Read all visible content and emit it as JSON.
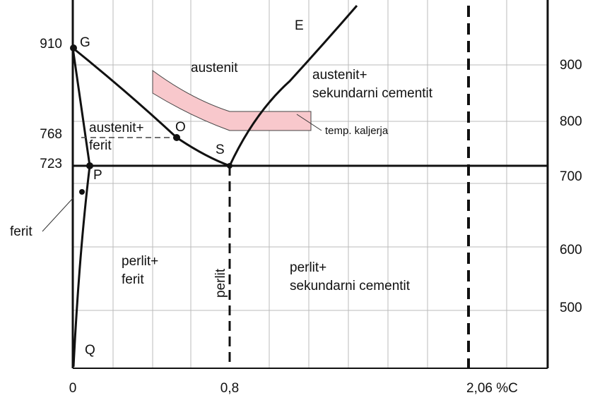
{
  "left_axis": [
    "910",
    "768",
    "723"
  ],
  "right_axis": [
    "900",
    "800",
    "700",
    "600",
    "500"
  ],
  "bottom_axis": [
    "0",
    "0,8",
    "2,06 %C"
  ],
  "points": [
    "G",
    "O",
    "S",
    "E",
    "P",
    "Q"
  ],
  "regions": {
    "austenit": "austenit",
    "austenit_cementit": [
      "austenit+",
      "sekundarni cementit"
    ],
    "austenit_ferit": [
      "austenit+",
      "ferit"
    ],
    "temp": "temp. kaljerja",
    "ferit": "ferit",
    "perlit_ferit": [
      "perlit+",
      "ferit"
    ],
    "perlit": "perlit",
    "perlit_cementit": [
      "perlit+",
      "sekundarni cementit"
    ]
  }
}
